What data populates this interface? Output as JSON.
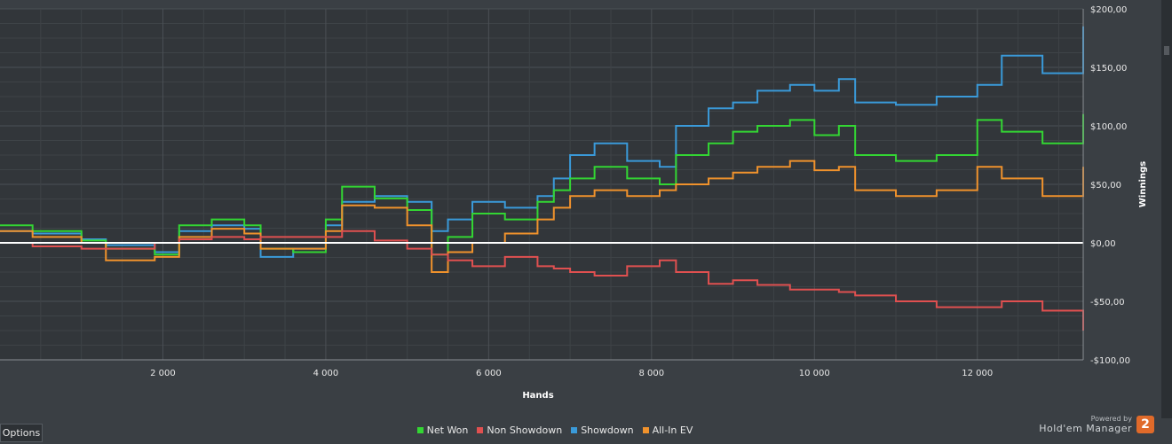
{
  "chart_data": {
    "type": "line",
    "xlabel": "Hands",
    "ylabel": "Winnings",
    "xlim": [
      0,
      13300
    ],
    "ylim": [
      -100,
      200
    ],
    "x_ticks": [
      2000,
      4000,
      6000,
      8000,
      10000,
      12000
    ],
    "x_tick_labels": [
      "2 000",
      "4 000",
      "6 000",
      "8 000",
      "10 000",
      "12 000"
    ],
    "y_ticks": [
      200,
      150,
      100,
      50,
      0,
      -50,
      -100
    ],
    "y_tick_labels": [
      "$200,00",
      "$150,00",
      "$100,00",
      "$50,00",
      "$0,00",
      "-$50,00",
      "-$100,00"
    ],
    "grid": true,
    "legend_position": "bottom",
    "series": [
      {
        "name": "Showdown",
        "color": "#3a9ad9",
        "x": [
          0,
          400,
          1000,
          1300,
          1900,
          2200,
          2600,
          3000,
          3200,
          3600,
          4000,
          4200,
          4600,
          5000,
          5300,
          5500,
          5800,
          6200,
          6600,
          6800,
          7000,
          7300,
          7700,
          8100,
          8300,
          8700,
          9000,
          9300,
          9700,
          10000,
          10300,
          10500,
          11000,
          11500,
          12000,
          12300,
          12800,
          13300
        ],
        "y": [
          10,
          8,
          3,
          -2,
          -8,
          10,
          15,
          12,
          -12,
          -5,
          15,
          35,
          40,
          35,
          10,
          20,
          35,
          30,
          40,
          55,
          75,
          85,
          70,
          65,
          100,
          115,
          120,
          130,
          135,
          130,
          140,
          120,
          118,
          125,
          135,
          160,
          145,
          185
        ]
      },
      {
        "name": "Net Won",
        "color": "#33d633",
        "x": [
          0,
          400,
          1000,
          1300,
          1900,
          2200,
          2600,
          3000,
          3200,
          3600,
          4000,
          4200,
          4600,
          5000,
          5300,
          5500,
          5800,
          6200,
          6600,
          6800,
          7000,
          7300,
          7700,
          8100,
          8300,
          8700,
          9000,
          9300,
          9700,
          10000,
          10300,
          10500,
          11000,
          11500,
          12000,
          12300,
          12800,
          13300
        ],
        "y": [
          15,
          10,
          2,
          -5,
          -10,
          15,
          20,
          15,
          -5,
          -8,
          20,
          48,
          38,
          28,
          -10,
          5,
          25,
          20,
          35,
          45,
          55,
          65,
          55,
          50,
          75,
          85,
          95,
          100,
          105,
          92,
          100,
          75,
          70,
          75,
          105,
          95,
          85,
          110
        ]
      },
      {
        "name": "All-In EV",
        "color": "#f0922c",
        "x": [
          0,
          400,
          1000,
          1300,
          1900,
          2200,
          2600,
          3000,
          3200,
          3600,
          4000,
          4200,
          4600,
          5000,
          5300,
          5500,
          5800,
          6200,
          6600,
          6800,
          7000,
          7300,
          7700,
          8100,
          8300,
          8700,
          9000,
          9300,
          9700,
          10000,
          10300,
          10500,
          11000,
          11500,
          12000,
          12300,
          12800,
          13300
        ],
        "y": [
          10,
          5,
          0,
          -15,
          -12,
          5,
          12,
          8,
          -5,
          -5,
          10,
          32,
          30,
          15,
          -25,
          -8,
          0,
          8,
          20,
          30,
          40,
          45,
          40,
          45,
          50,
          55,
          60,
          65,
          70,
          62,
          65,
          45,
          40,
          45,
          65,
          55,
          40,
          65
        ]
      },
      {
        "name": "Non Showdown",
        "color": "#e05050",
        "x": [
          0,
          400,
          1000,
          1300,
          1900,
          2200,
          2600,
          3000,
          3200,
          3600,
          4000,
          4200,
          4600,
          5000,
          5300,
          5500,
          5800,
          6200,
          6600,
          6800,
          7000,
          7300,
          7700,
          8100,
          8300,
          8700,
          9000,
          9300,
          9700,
          10000,
          10300,
          10500,
          11000,
          11500,
          12000,
          12300,
          12800,
          13300
        ],
        "y": [
          0,
          -3,
          -5,
          -5,
          0,
          3,
          5,
          3,
          5,
          5,
          5,
          10,
          2,
          -5,
          -10,
          -15,
          -20,
          -12,
          -20,
          -22,
          -25,
          -28,
          -20,
          -15,
          -25,
          -35,
          -32,
          -36,
          -40,
          -40,
          -42,
          -45,
          -50,
          -55,
          -55,
          -50,
          -58,
          -75
        ]
      }
    ]
  },
  "legend": [
    {
      "label": "Net Won",
      "color": "#33d633"
    },
    {
      "label": "Non Showdown",
      "color": "#e05050"
    },
    {
      "label": "Showdown",
      "color": "#3a9ad9"
    },
    {
      "label": "All-In EV",
      "color": "#f0922c"
    }
  ],
  "options_label": "Options",
  "branding": {
    "powered_by": "Powered by",
    "name": "Hold'em Manager",
    "logo_text": "2"
  }
}
